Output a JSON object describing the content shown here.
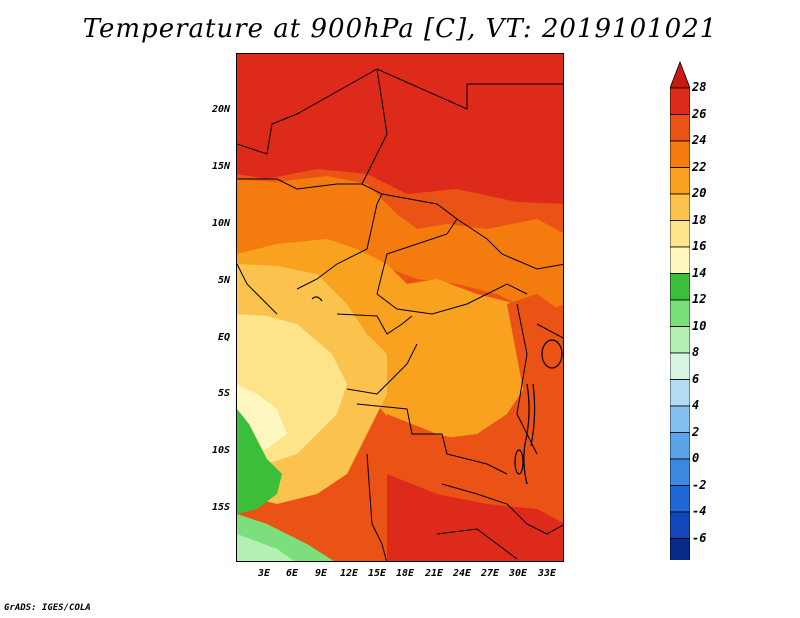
{
  "title": "Temperature at 900hPa [C], VT: 2019101021",
  "credit": "GrADS: IGES/COLA",
  "lat_labels": [
    "20N",
    "15N",
    "10N",
    "5N",
    "EQ",
    "5S",
    "10S",
    "15S"
  ],
  "lon_labels": [
    "3E",
    "6E",
    "9E",
    "12E",
    "15E",
    "18E",
    "21E",
    "24E",
    "27E",
    "30E",
    "33E"
  ],
  "colorbar": {
    "labels": [
      "28",
      "26",
      "24",
      "22",
      "20",
      "18",
      "16",
      "14",
      "12",
      "10",
      "8",
      "6",
      "4",
      "2",
      "0",
      "-2",
      "-4",
      "-6"
    ],
    "colors": [
      "#dd2a1b",
      "#ea5216",
      "#f47c0e",
      "#f9a220",
      "#fbc24d",
      "#fde38a",
      "#fff6c0",
      "#3bbf3b",
      "#7be07b",
      "#b4f0b4",
      "#d8f5e4",
      "#b4dcf5",
      "#85c1f0",
      "#5aa4ea",
      "#3c87e0",
      "#1f67d6",
      "#1147b8",
      "#0a2a8a",
      "#0c0c5e"
    ],
    "top_color": "#c81a10",
    "bottom_color": "#d9d9f5"
  }
}
